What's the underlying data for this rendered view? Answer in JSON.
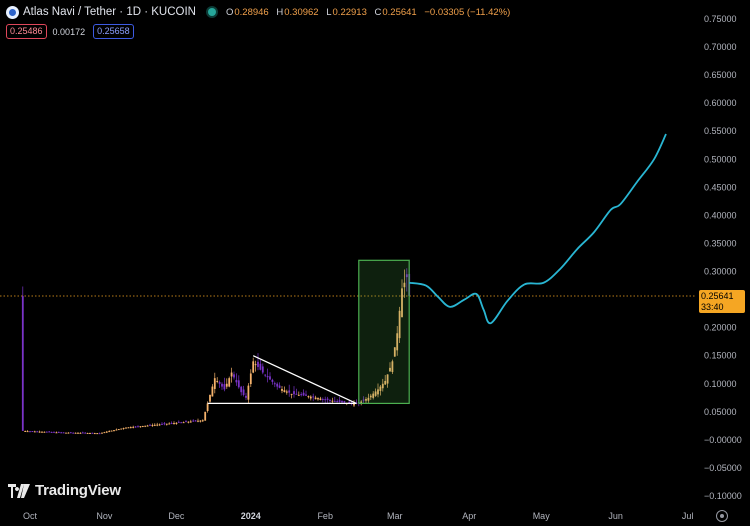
{
  "header": {
    "symbol_title": "Atlas Navi / Tether · 1D · KUCOIN",
    "open_label": "O",
    "open": "0.28946",
    "high_label": "H",
    "high": "0.30962",
    "low_label": "L",
    "low": "0.22913",
    "close_label": "C",
    "close": "0.25641",
    "change": "−0.03305 (−11.42%)",
    "sell_price": "0.25486",
    "spread": "0.00172",
    "buy_price": "0.25658"
  },
  "price_tag": {
    "price": "0.25641",
    "countdown": "33:40"
  },
  "branding": {
    "name": "TradingView"
  },
  "icons": {
    "logo": "atlas-navi-logo-icon",
    "status": "market-status-dot-icon",
    "brand": "tradingview-logo-icon",
    "settings": "settings-icon"
  },
  "colors": {
    "candle_up": "#f5b26b",
    "candle_down": "#7a33c9",
    "forecast_line": "#29b6d3",
    "box": "#4caf50",
    "current_price": "#f5a623"
  },
  "chart_data": {
    "type": "candlestick",
    "x_axis": [
      "Oct",
      "Nov",
      "Dec",
      "2024",
      "Feb",
      "Mar",
      "Apr",
      "May",
      "Jun",
      "Jul"
    ],
    "y_axis": [
      "0.75000",
      "0.70000",
      "0.65000",
      "0.60000",
      "0.55000",
      "0.50000",
      "0.45000",
      "0.40000",
      "0.35000",
      "0.30000",
      "0.25000",
      "0.20000",
      "0.15000",
      "0.10000",
      "0.05000",
      "−0.00000",
      "−0.05000",
      "−0.10000"
    ],
    "ylim": [
      -0.1,
      0.75
    ],
    "current_price": 0.25641,
    "price_path": [
      {
        "x": "2023-09-28",
        "y": 0.016
      },
      {
        "x": "2023-10-15",
        "y": 0.013
      },
      {
        "x": "2023-10-30",
        "y": 0.012
      },
      {
        "x": "2023-11-10",
        "y": 0.022
      },
      {
        "x": "2023-11-25",
        "y": 0.028
      },
      {
        "x": "2023-12-05",
        "y": 0.032
      },
      {
        "x": "2023-12-12",
        "y": 0.035
      },
      {
        "x": "2023-12-14",
        "y": 0.065
      },
      {
        "x": "2023-12-17",
        "y": 0.11
      },
      {
        "x": "2023-12-21",
        "y": 0.09
      },
      {
        "x": "2023-12-24",
        "y": 0.12
      },
      {
        "x": "2023-12-28",
        "y": 0.085
      },
      {
        "x": "2023-12-30",
        "y": 0.075
      },
      {
        "x": "2024-01-02",
        "y": 0.14
      },
      {
        "x": "2024-01-06",
        "y": 0.12
      },
      {
        "x": "2024-01-12",
        "y": 0.095
      },
      {
        "x": "2024-01-18",
        "y": 0.082
      },
      {
        "x": "2024-01-25",
        "y": 0.078
      },
      {
        "x": "2024-02-01",
        "y": 0.072
      },
      {
        "x": "2024-02-08",
        "y": 0.067
      },
      {
        "x": "2024-02-14",
        "y": 0.064
      },
      {
        "x": "2024-02-19",
        "y": 0.075
      },
      {
        "x": "2024-02-23",
        "y": 0.09
      },
      {
        "x": "2024-02-26",
        "y": 0.105
      },
      {
        "x": "2024-02-29",
        "y": 0.14
      },
      {
        "x": "2024-03-02",
        "y": 0.19
      },
      {
        "x": "2024-03-04",
        "y": 0.27
      },
      {
        "x": "2024-03-06",
        "y": 0.29
      },
      {
        "x": "2024-03-07",
        "y": 0.25641
      }
    ],
    "triangle_pattern": {
      "upper": [
        {
          "x": "2024-01-02",
          "y": 0.15
        },
        {
          "x": "2024-02-14",
          "y": 0.065
        }
      ],
      "lower": [
        {
          "x": "2023-12-14",
          "y": 0.065
        },
        {
          "x": "2024-02-14",
          "y": 0.065
        }
      ]
    },
    "breakout_box": {
      "x_start": "2024-02-15",
      "x_end": "2024-03-07",
      "y_low": 0.065,
      "y_high": 0.32
    },
    "forecast_path": [
      {
        "x": "2024-03-07",
        "y": 0.28
      },
      {
        "x": "2024-03-14",
        "y": 0.275
      },
      {
        "x": "2024-03-19",
        "y": 0.255
      },
      {
        "x": "2024-03-24",
        "y": 0.237
      },
      {
        "x": "2024-03-30",
        "y": 0.25
      },
      {
        "x": "2024-04-04",
        "y": 0.26
      },
      {
        "x": "2024-04-07",
        "y": 0.232
      },
      {
        "x": "2024-04-10",
        "y": 0.208
      },
      {
        "x": "2024-04-17",
        "y": 0.248
      },
      {
        "x": "2024-04-24",
        "y": 0.277
      },
      {
        "x": "2024-05-02",
        "y": 0.28
      },
      {
        "x": "2024-05-09",
        "y": 0.305
      },
      {
        "x": "2024-05-16",
        "y": 0.34
      },
      {
        "x": "2024-05-23",
        "y": 0.37
      },
      {
        "x": "2024-05-30",
        "y": 0.41
      },
      {
        "x": "2024-06-03",
        "y": 0.42
      },
      {
        "x": "2024-06-10",
        "y": 0.46
      },
      {
        "x": "2024-06-17",
        "y": 0.5
      },
      {
        "x": "2024-06-22",
        "y": 0.545
      }
    ]
  }
}
